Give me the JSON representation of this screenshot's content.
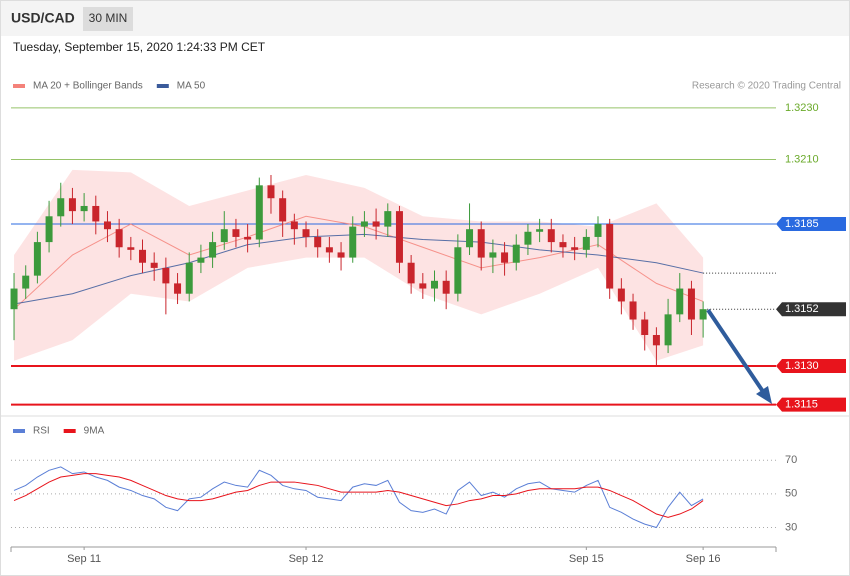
{
  "header": {
    "symbol": "USD/CAD",
    "interval": "30 MIN"
  },
  "timestamp": "Tuesday, September 15, 2020 1:24:33 PM CET",
  "copyright": "Research © 2020 Trading Central",
  "chart_data": [
    {
      "type": "candlestick",
      "up_color": "#3c9a3c",
      "down_color": "#c9252c",
      "xlim": [
        -0.26,
        65.24
      ],
      "ylim": [
        1.3111,
        1.3235
      ],
      "x": [
        0,
        1,
        2,
        3,
        4,
        5,
        6,
        7,
        8,
        9,
        10,
        11,
        12,
        13,
        14,
        15,
        16,
        17,
        18,
        19,
        20,
        21,
        22,
        23,
        24,
        25,
        26,
        27,
        28,
        29,
        30,
        31,
        32,
        33,
        34,
        35,
        36,
        37,
        38,
        39,
        40,
        41,
        42,
        43,
        44,
        45,
        46,
        47,
        48,
        49,
        50,
        51,
        52,
        53,
        54,
        55,
        56,
        57,
        58,
        59
      ],
      "open": [
        1.3152,
        1.316,
        1.3165,
        1.3178,
        1.3188,
        1.3195,
        1.319,
        1.3192,
        1.3186,
        1.3183,
        1.3176,
        1.3175,
        1.317,
        1.3168,
        1.3162,
        1.3158,
        1.317,
        1.3172,
        1.3178,
        1.3183,
        1.318,
        1.3179,
        1.32,
        1.3195,
        1.3186,
        1.3183,
        1.318,
        1.3176,
        1.3174,
        1.3172,
        1.3184,
        1.3186,
        1.3184,
        1.319,
        1.317,
        1.3162,
        1.316,
        1.3163,
        1.3158,
        1.3176,
        1.3183,
        1.3172,
        1.3174,
        1.317,
        1.3177,
        1.3182,
        1.3183,
        1.3178,
        1.3176,
        1.3175,
        1.318,
        1.3185,
        1.316,
        1.3155,
        1.3148,
        1.3142,
        1.3138,
        1.315,
        1.316,
        1.3148
      ],
      "high": [
        1.3166,
        1.3169,
        1.3182,
        1.3194,
        1.3201,
        1.3199,
        1.3197,
        1.3196,
        1.319,
        1.3187,
        1.318,
        1.3179,
        1.3174,
        1.3172,
        1.3166,
        1.3174,
        1.3177,
        1.3182,
        1.319,
        1.3187,
        1.3185,
        1.3203,
        1.3204,
        1.3198,
        1.3189,
        1.3186,
        1.3183,
        1.318,
        1.3178,
        1.3188,
        1.319,
        1.3191,
        1.3193,
        1.3192,
        1.3173,
        1.3166,
        1.3167,
        1.3167,
        1.3181,
        1.3193,
        1.3186,
        1.3179,
        1.3178,
        1.3181,
        1.3185,
        1.3187,
        1.3187,
        1.3181,
        1.318,
        1.3183,
        1.3188,
        1.3187,
        1.3164,
        1.3158,
        1.3151,
        1.3145,
        1.3156,
        1.3166,
        1.3163,
        1.3155
      ],
      "low": [
        1.314,
        1.3156,
        1.3162,
        1.3174,
        1.3184,
        1.3185,
        1.3186,
        1.3181,
        1.3178,
        1.3172,
        1.3171,
        1.3166,
        1.3163,
        1.315,
        1.3154,
        1.3155,
        1.3166,
        1.3168,
        1.3175,
        1.3176,
        1.3174,
        1.3176,
        1.3189,
        1.318,
        1.3177,
        1.3176,
        1.3172,
        1.317,
        1.3167,
        1.317,
        1.318,
        1.3179,
        1.318,
        1.3166,
        1.3158,
        1.3156,
        1.3155,
        1.3152,
        1.3155,
        1.3173,
        1.3167,
        1.3166,
        1.3165,
        1.3167,
        1.3173,
        1.3178,
        1.3174,
        1.3172,
        1.3171,
        1.3172,
        1.3176,
        1.3156,
        1.315,
        1.3144,
        1.3136,
        1.313,
        1.3135,
        1.3147,
        1.3142,
        1.3141
      ],
      "close": [
        1.316,
        1.3165,
        1.3178,
        1.3188,
        1.3195,
        1.319,
        1.3192,
        1.3186,
        1.3183,
        1.3176,
        1.3175,
        1.317,
        1.3168,
        1.3162,
        1.3158,
        1.317,
        1.3172,
        1.3178,
        1.3183,
        1.318,
        1.3179,
        1.32,
        1.3195,
        1.3186,
        1.3183,
        1.318,
        1.3176,
        1.3174,
        1.3172,
        1.3184,
        1.3186,
        1.3184,
        1.319,
        1.317,
        1.3162,
        1.316,
        1.3163,
        1.3158,
        1.3176,
        1.3183,
        1.3172,
        1.3174,
        1.317,
        1.3177,
        1.3182,
        1.3183,
        1.3178,
        1.3176,
        1.3175,
        1.318,
        1.3185,
        1.316,
        1.3155,
        1.3148,
        1.3142,
        1.3138,
        1.315,
        1.316,
        1.3148,
        1.3152
      ],
      "series": [
        {
          "name": "MA 20 + Bollinger Bands",
          "color": "#f4827a",
          "band_color": "#fde3e3",
          "x": [
            0,
            5,
            10,
            15,
            20,
            25,
            30,
            35,
            40,
            45,
            50,
            55,
            59
          ],
          "values": [
            1.3152,
            1.3173,
            1.3185,
            1.3173,
            1.318,
            1.3188,
            1.3184,
            1.3176,
            1.3168,
            1.3172,
            1.3177,
            1.3162,
            1.3155
          ],
          "upper": [
            1.3173,
            1.3206,
            1.3205,
            1.3192,
            1.3198,
            1.3204,
            1.3199,
            1.3188,
            1.3186,
            1.3186,
            1.3184,
            1.3193,
            1.3172
          ],
          "lower": [
            1.3132,
            1.314,
            1.3158,
            1.3155,
            1.3168,
            1.3172,
            1.3172,
            1.3158,
            1.315,
            1.3158,
            1.3168,
            1.3132,
            1.3138
          ]
        },
        {
          "name": "MA 50",
          "color": "#3b5b9b",
          "x": [
            0,
            5,
            10,
            15,
            20,
            25,
            30,
            35,
            40,
            45,
            50,
            55,
            59
          ],
          "values": [
            1.3154,
            1.3158,
            1.3165,
            1.317,
            1.3177,
            1.318,
            1.3181,
            1.3179,
            1.3178,
            1.3175,
            1.3173,
            1.317,
            1.3166
          ]
        }
      ],
      "levels": [
        {
          "value": 1.323,
          "label": "1.3230",
          "kind": "target",
          "color": "#6aaa2a"
        },
        {
          "value": 1.321,
          "label": "1.3210",
          "kind": "target",
          "color": "#6aaa2a"
        },
        {
          "value": 1.3185,
          "label": "1.3185",
          "kind": "pivot",
          "color": "#2a6ae0"
        },
        {
          "value": 1.3152,
          "label": "1.3152",
          "kind": "last",
          "color": "#333333"
        },
        {
          "value": 1.313,
          "label": "1.3130",
          "kind": "support",
          "color": "#e8141c"
        },
        {
          "value": 1.3115,
          "label": "1.3115",
          "kind": "support",
          "color": "#e8141c"
        }
      ]
    },
    {
      "type": "line",
      "xlim": [
        -0.26,
        65.24
      ],
      "ylim": [
        19,
        82
      ],
      "yticks": [
        70,
        50,
        30
      ],
      "xticks": [
        {
          "value": 6,
          "label": "Sep 11"
        },
        {
          "value": 25,
          "label": "Sep 12"
        },
        {
          "value": 49,
          "label": "Sep 15"
        },
        {
          "value": 59,
          "label": "Sep 16"
        }
      ],
      "x": [
        0,
        1,
        2,
        3,
        4,
        5,
        6,
        7,
        8,
        9,
        10,
        11,
        12,
        13,
        14,
        15,
        16,
        17,
        18,
        19,
        20,
        21,
        22,
        23,
        24,
        25,
        26,
        27,
        28,
        29,
        30,
        31,
        32,
        33,
        34,
        35,
        36,
        37,
        38,
        39,
        40,
        41,
        42,
        43,
        44,
        45,
        46,
        47,
        48,
        49,
        50,
        51,
        52,
        53,
        54,
        55,
        56,
        57,
        58,
        59
      ],
      "series": [
        {
          "name": "RSI",
          "color": "#5b7fd6",
          "values": [
            52,
            55,
            60,
            64,
            66,
            62,
            63,
            60,
            58,
            54,
            52,
            49,
            47,
            42,
            40,
            47,
            48,
            53,
            57,
            55,
            54,
            64,
            61,
            55,
            53,
            52,
            48,
            47,
            46,
            54,
            56,
            55,
            58,
            45,
            40,
            39,
            41,
            38,
            52,
            57,
            49,
            51,
            48,
            53,
            56,
            57,
            53,
            52,
            51,
            55,
            58,
            42,
            39,
            35,
            32,
            30,
            42,
            51,
            43,
            47
          ]
        },
        {
          "name": "9MA",
          "color": "#e8141c",
          "values": [
            46,
            49,
            53,
            57,
            60,
            61,
            62,
            62,
            61,
            60,
            58,
            55,
            52,
            49,
            47,
            46,
            46,
            47,
            49,
            51,
            52,
            55,
            57,
            57,
            57,
            56,
            55,
            53,
            51,
            51,
            51,
            51,
            52,
            51,
            49,
            47,
            45,
            43,
            44,
            46,
            47,
            49,
            49,
            50,
            52,
            53,
            53,
            53,
            53,
            54,
            54,
            52,
            49,
            46,
            42,
            38,
            36,
            38,
            41,
            46
          ]
        }
      ]
    }
  ]
}
